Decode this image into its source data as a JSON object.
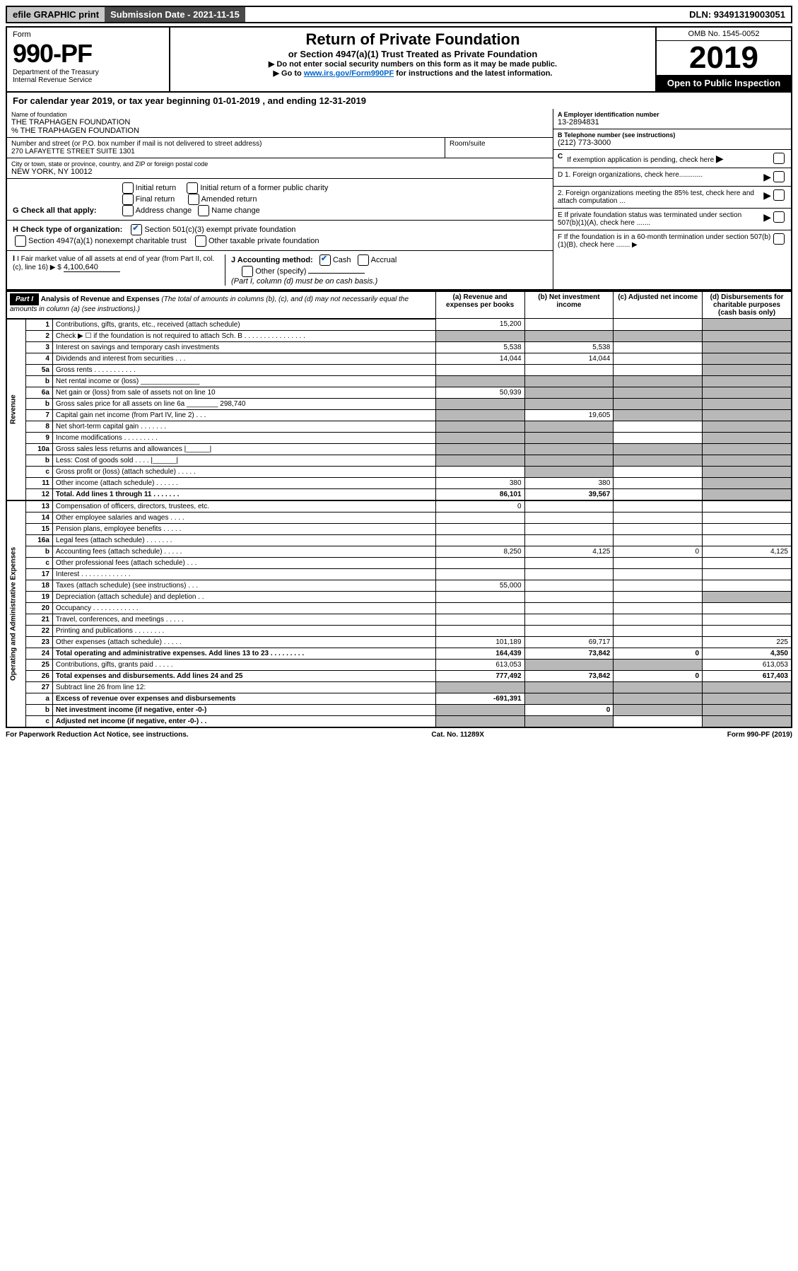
{
  "topbar": {
    "efile": "efile GRAPHIC print",
    "submission": "Submission Date - 2021-11-15",
    "dln": "DLN: 93491319003051"
  },
  "header": {
    "form_label": "Form",
    "form_number": "990-PF",
    "dept": "Department of the Treasury\nInternal Revenue Service",
    "title": "Return of Private Foundation",
    "subtitle": "or Section 4947(a)(1) Trust Treated as Private Foundation",
    "note1": "▶ Do not enter social security numbers on this form as it may be made public.",
    "note2_pre": "▶ Go to ",
    "note2_link": "www.irs.gov/Form990PF",
    "note2_post": " for instructions and the latest information.",
    "omb": "OMB No. 1545-0052",
    "year": "2019",
    "open": "Open to Public Inspection"
  },
  "calyear": "For calendar year 2019, or tax year beginning 01-01-2019                               , and ending 12-31-2019",
  "entity": {
    "name_lbl": "Name of foundation",
    "name": "THE TRAPHAGEN FOUNDATION",
    "care": "% THE TRAPHAGEN FOUNDATION",
    "addr_lbl": "Number and street (or P.O. box number if mail is not delivered to street address)",
    "addr": "270 LAFAYETTE STREET SUITE 1301",
    "room_lbl": "Room/suite",
    "city_lbl": "City or town, state or province, country, and ZIP or foreign postal code",
    "city": "NEW YORK, NY  10012",
    "ein_lbl": "A Employer identification number",
    "ein": "13-2894831",
    "tel_lbl": "B Telephone number (see instructions)",
    "tel": "(212) 773-3000",
    "c": "C If exemption application is pending, check here"
  },
  "g": {
    "label": "G Check all that apply:",
    "opts": [
      "Initial return",
      "Final return",
      "Address change",
      "Initial return of a former public charity",
      "Amended return",
      "Name change"
    ]
  },
  "h": {
    "label": "H Check type of organization:",
    "o1": "Section 501(c)(3) exempt private foundation",
    "o2": "Section 4947(a)(1) nonexempt charitable trust",
    "o3": "Other taxable private foundation"
  },
  "i": {
    "label": "I Fair market value of all assets at end of year (from Part II, col. (c), line 16) ▶ $",
    "val": "4,100,640",
    "j_label": "J Accounting method:",
    "j_cash": "Cash",
    "j_accrual": "Accrual",
    "j_other": "Other (specify)",
    "j_note": "(Part I, column (d) must be on cash basis.)"
  },
  "right": {
    "d1": "D 1. Foreign organizations, check here............",
    "d2": "2. Foreign organizations meeting the 85% test, check here and attach computation ...",
    "e": "E  If private foundation status was terminated under section 507(b)(1)(A), check here .......",
    "f": "F  If the foundation is in a 60-month termination under section 507(b)(1)(B), check here .......  ▶"
  },
  "part1": {
    "label": "Part I",
    "title": "Analysis of Revenue and Expenses",
    "title_note": "(The total of amounts in columns (b), (c), and (d) may not necessarily equal the amounts in column (a) (see instructions).)",
    "cols": {
      "a": "(a) Revenue and expenses per books",
      "b": "(b) Net investment income",
      "c": "(c) Adjusted net income",
      "d": "(d) Disbursements for charitable purposes (cash basis only)"
    }
  },
  "sections": {
    "rev": "Revenue",
    "ope": "Operating and Administrative Expenses"
  },
  "lines": [
    {
      "n": "1",
      "d": "Contributions, gifts, grants, etc., received (attach schedule)",
      "a": "15,200",
      "b": "",
      "c": "",
      "dd": "",
      "ga": false,
      "gb": false,
      "gc": false,
      "gd": true
    },
    {
      "n": "2",
      "d": "Check ▶ ☐ if the foundation is not required to attach Sch. B  .  .  .  .  .  .  .  .  .  .  .  .  .  .  .  .",
      "a": "",
      "b": "",
      "c": "",
      "dd": "",
      "ga": true,
      "gb": true,
      "gc": true,
      "gd": true
    },
    {
      "n": "3",
      "d": "Interest on savings and temporary cash investments",
      "a": "5,538",
      "b": "5,538",
      "c": "",
      "dd": "",
      "ga": false,
      "gb": false,
      "gc": false,
      "gd": true
    },
    {
      "n": "4",
      "d": "Dividends and interest from securities  .  .  .",
      "a": "14,044",
      "b": "14,044",
      "c": "",
      "dd": "",
      "ga": false,
      "gb": false,
      "gc": false,
      "gd": true
    },
    {
      "n": "5a",
      "d": "Gross rents  .  .  .  .  .  .  .  .  .  .  .",
      "a": "",
      "b": "",
      "c": "",
      "dd": "",
      "ga": false,
      "gb": false,
      "gc": false,
      "gd": true
    },
    {
      "n": "b",
      "d": "Net rental income or (loss)  _______________",
      "a": "",
      "b": "",
      "c": "",
      "dd": "",
      "ga": true,
      "gb": true,
      "gc": true,
      "gd": true
    },
    {
      "n": "6a",
      "d": "Net gain or (loss) from sale of assets not on line 10",
      "a": "50,939",
      "b": "",
      "c": "",
      "dd": "",
      "ga": false,
      "gb": true,
      "gc": true,
      "gd": true
    },
    {
      "n": "b",
      "d": "Gross sales price for all assets on line 6a ________ 298,740",
      "a": "",
      "b": "",
      "c": "",
      "dd": "",
      "ga": true,
      "gb": true,
      "gc": true,
      "gd": true
    },
    {
      "n": "7",
      "d": "Capital gain net income (from Part IV, line 2)  .  .  .",
      "a": "",
      "b": "19,605",
      "c": "",
      "dd": "",
      "ga": true,
      "gb": false,
      "gc": true,
      "gd": true
    },
    {
      "n": "8",
      "d": "Net short-term capital gain  .  .  .  .  .  .  .",
      "a": "",
      "b": "",
      "c": "",
      "dd": "",
      "ga": true,
      "gb": true,
      "gc": false,
      "gd": true
    },
    {
      "n": "9",
      "d": "Income modifications  .  .  .  .  .  .  .  .  .",
      "a": "",
      "b": "",
      "c": "",
      "dd": "",
      "ga": true,
      "gb": true,
      "gc": false,
      "gd": true
    },
    {
      "n": "10a",
      "d": "Gross sales less returns and allowances  |______|",
      "a": "",
      "b": "",
      "c": "",
      "dd": "",
      "ga": true,
      "gb": true,
      "gc": true,
      "gd": true
    },
    {
      "n": "b",
      "d": "Less: Cost of goods sold  .  .  .  .  |______|",
      "a": "",
      "b": "",
      "c": "",
      "dd": "",
      "ga": true,
      "gb": true,
      "gc": true,
      "gd": true
    },
    {
      "n": "c",
      "d": "Gross profit or (loss) (attach schedule)  .  .  .  .  .",
      "a": "",
      "b": "",
      "c": "",
      "dd": "",
      "ga": false,
      "gb": true,
      "gc": false,
      "gd": true
    },
    {
      "n": "11",
      "d": "Other income (attach schedule)  .  .  .  .  .  .",
      "a": "380",
      "b": "380",
      "c": "",
      "dd": "",
      "ga": false,
      "gb": false,
      "gc": false,
      "gd": true
    },
    {
      "n": "12",
      "d": "Total. Add lines 1 through 11  .  .  .  .  .  .  .",
      "a": "86,101",
      "b": "39,567",
      "c": "",
      "dd": "",
      "ga": false,
      "gb": false,
      "gc": false,
      "gd": true,
      "bold": true
    },
    {
      "n": "13",
      "d": "Compensation of officers, directors, trustees, etc.",
      "a": "0",
      "b": "",
      "c": "",
      "dd": "",
      "ga": false,
      "gb": false,
      "gc": false,
      "gd": false
    },
    {
      "n": "14",
      "d": "Other employee salaries and wages  .  .  .  .",
      "a": "",
      "b": "",
      "c": "",
      "dd": "",
      "ga": false,
      "gb": false,
      "gc": false,
      "gd": false
    },
    {
      "n": "15",
      "d": "Pension plans, employee benefits  .  .  .  .  .",
      "a": "",
      "b": "",
      "c": "",
      "dd": "",
      "ga": false,
      "gb": false,
      "gc": false,
      "gd": false
    },
    {
      "n": "16a",
      "d": "Legal fees (attach schedule)  .  .  .  .  .  .  .",
      "a": "",
      "b": "",
      "c": "",
      "dd": "",
      "ga": false,
      "gb": false,
      "gc": false,
      "gd": false
    },
    {
      "n": "b",
      "d": "Accounting fees (attach schedule)  .  .  .  .  .",
      "a": "8,250",
      "b": "4,125",
      "c": "0",
      "dd": "4,125",
      "ga": false,
      "gb": false,
      "gc": false,
      "gd": false
    },
    {
      "n": "c",
      "d": "Other professional fees (attach schedule)  .  .  .",
      "a": "",
      "b": "",
      "c": "",
      "dd": "",
      "ga": false,
      "gb": false,
      "gc": false,
      "gd": false
    },
    {
      "n": "17",
      "d": "Interest  .  .  .  .  .  .  .  .  .  .  .  .  .",
      "a": "",
      "b": "",
      "c": "",
      "dd": "",
      "ga": false,
      "gb": false,
      "gc": false,
      "gd": false
    },
    {
      "n": "18",
      "d": "Taxes (attach schedule) (see instructions)  .  .  .",
      "a": "55,000",
      "b": "",
      "c": "",
      "dd": "",
      "ga": false,
      "gb": false,
      "gc": false,
      "gd": false
    },
    {
      "n": "19",
      "d": "Depreciation (attach schedule) and depletion  .  .",
      "a": "",
      "b": "",
      "c": "",
      "dd": "",
      "ga": false,
      "gb": false,
      "gc": false,
      "gd": true
    },
    {
      "n": "20",
      "d": "Occupancy  .  .  .  .  .  .  .  .  .  .  .  .",
      "a": "",
      "b": "",
      "c": "",
      "dd": "",
      "ga": false,
      "gb": false,
      "gc": false,
      "gd": false
    },
    {
      "n": "21",
      "d": "Travel, conferences, and meetings  .  .  .  .  .",
      "a": "",
      "b": "",
      "c": "",
      "dd": "",
      "ga": false,
      "gb": false,
      "gc": false,
      "gd": false
    },
    {
      "n": "22",
      "d": "Printing and publications  .  .  .  .  .  .  .  .",
      "a": "",
      "b": "",
      "c": "",
      "dd": "",
      "ga": false,
      "gb": false,
      "gc": false,
      "gd": false
    },
    {
      "n": "23",
      "d": "Other expenses (attach schedule)  .  .  .  .  .",
      "a": "101,189",
      "b": "69,717",
      "c": "",
      "dd": "225",
      "ga": false,
      "gb": false,
      "gc": false,
      "gd": false
    },
    {
      "n": "24",
      "d": "Total operating and administrative expenses. Add lines 13 to 23  .  .  .  .  .  .  .  .  .",
      "a": "164,439",
      "b": "73,842",
      "c": "0",
      "dd": "4,350",
      "ga": false,
      "gb": false,
      "gc": false,
      "gd": false,
      "bold": true
    },
    {
      "n": "25",
      "d": "Contributions, gifts, grants paid  .  .  .  .  .",
      "a": "613,053",
      "b": "",
      "c": "",
      "dd": "613,053",
      "ga": false,
      "gb": true,
      "gc": true,
      "gd": false
    },
    {
      "n": "26",
      "d": "Total expenses and disbursements. Add lines 24 and 25",
      "a": "777,492",
      "b": "73,842",
      "c": "0",
      "dd": "617,403",
      "ga": false,
      "gb": false,
      "gc": false,
      "gd": false,
      "bold": true
    },
    {
      "n": "27",
      "d": "Subtract line 26 from line 12:",
      "a": "",
      "b": "",
      "c": "",
      "dd": "",
      "ga": true,
      "gb": true,
      "gc": true,
      "gd": true
    },
    {
      "n": "a",
      "d": "Excess of revenue over expenses and disbursements",
      "a": "-691,391",
      "b": "",
      "c": "",
      "dd": "",
      "ga": false,
      "gb": true,
      "gc": true,
      "gd": true,
      "bold": true
    },
    {
      "n": "b",
      "d": "Net investment income (if negative, enter -0-)",
      "a": "",
      "b": "0",
      "c": "",
      "dd": "",
      "ga": true,
      "gb": false,
      "gc": true,
      "gd": true,
      "bold": true
    },
    {
      "n": "c",
      "d": "Adjusted net income (if negative, enter -0-)  .  .",
      "a": "",
      "b": "",
      "c": "",
      "dd": "",
      "ga": true,
      "gb": true,
      "gc": false,
      "gd": true,
      "bold": true
    }
  ],
  "footer": {
    "left": "For Paperwork Reduction Act Notice, see instructions.",
    "mid": "Cat. No. 11289X",
    "right": "Form 990-PF (2019)"
  }
}
